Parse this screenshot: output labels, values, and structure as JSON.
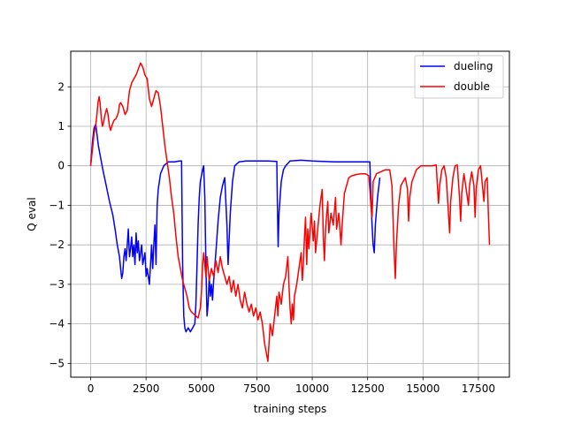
{
  "chart_data": {
    "type": "line",
    "title": "",
    "xlabel": "training steps",
    "ylabel": "Q eval",
    "xlim": [
      -900,
      18900
    ],
    "ylim": [
      -5.35,
      2.9
    ],
    "xticks": [
      0,
      2500,
      5000,
      7500,
      10000,
      12500,
      15000,
      17500
    ],
    "yticks": [
      -5,
      -4,
      -3,
      -2,
      -1,
      0,
      1,
      2
    ],
    "grid": true,
    "legend": "top-right",
    "series": [
      {
        "name": "dueling",
        "color": "#0000ff",
        "points": [
          [
            0,
            0.0
          ],
          [
            80,
            0.6
          ],
          [
            150,
            0.95
          ],
          [
            230,
            1.05
          ],
          [
            280,
            0.8
          ],
          [
            350,
            0.5
          ],
          [
            450,
            0.2
          ],
          [
            550,
            -0.1
          ],
          [
            700,
            -0.5
          ],
          [
            850,
            -0.9
          ],
          [
            1000,
            -1.25
          ],
          [
            1100,
            -1.6
          ],
          [
            1200,
            -2.0
          ],
          [
            1300,
            -2.3
          ],
          [
            1350,
            -2.6
          ],
          [
            1400,
            -2.85
          ],
          [
            1450,
            -2.7
          ],
          [
            1500,
            -2.3
          ],
          [
            1550,
            -2.1
          ],
          [
            1600,
            -2.4
          ],
          [
            1650,
            -2.0
          ],
          [
            1700,
            -1.6
          ],
          [
            1750,
            -2.3
          ],
          [
            1800,
            -2.1
          ],
          [
            1850,
            -1.8
          ],
          [
            1900,
            -2.3
          ],
          [
            1950,
            -2.0
          ],
          [
            2000,
            -2.5
          ],
          [
            2050,
            -1.7
          ],
          [
            2100,
            -2.2
          ],
          [
            2150,
            -1.9
          ],
          [
            2200,
            -2.4
          ],
          [
            2300,
            -2.0
          ],
          [
            2350,
            -2.5
          ],
          [
            2450,
            -2.2
          ],
          [
            2500,
            -2.8
          ],
          [
            2550,
            -2.6
          ],
          [
            2650,
            -3.0
          ],
          [
            2700,
            -2.5
          ],
          [
            2750,
            -2.0
          ],
          [
            2800,
            -2.6
          ],
          [
            2850,
            -2.0
          ],
          [
            2900,
            -1.5
          ],
          [
            2950,
            -2.5
          ],
          [
            3000,
            -1.0
          ],
          [
            3050,
            -0.6
          ],
          [
            3150,
            -0.2
          ],
          [
            3300,
            0.0
          ],
          [
            3500,
            0.1
          ],
          [
            3800,
            0.1
          ],
          [
            4000,
            0.12
          ],
          [
            4100,
            0.12
          ],
          [
            4120,
            -1.0
          ],
          [
            4150,
            -2.5
          ],
          [
            4200,
            -3.8
          ],
          [
            4250,
            -4.1
          ],
          [
            4300,
            -4.2
          ],
          [
            4400,
            -4.1
          ],
          [
            4500,
            -4.2
          ],
          [
            4600,
            -4.1
          ],
          [
            4700,
            -4.0
          ],
          [
            4750,
            -3.5
          ],
          [
            4800,
            -2.5
          ],
          [
            4850,
            -1.5
          ],
          [
            4900,
            -0.8
          ],
          [
            4950,
            -0.4
          ],
          [
            5050,
            -0.1
          ],
          [
            5100,
            0.0
          ],
          [
            5150,
            -0.8
          ],
          [
            5200,
            -2.5
          ],
          [
            5250,
            -3.8
          ],
          [
            5300,
            -3.5
          ],
          [
            5350,
            -2.8
          ],
          [
            5400,
            -3.3
          ],
          [
            5450,
            -3.0
          ],
          [
            5500,
            -3.4
          ],
          [
            5550,
            -2.9
          ],
          [
            5650,
            -2.2
          ],
          [
            5750,
            -1.4
          ],
          [
            5850,
            -0.8
          ],
          [
            5950,
            -0.5
          ],
          [
            6050,
            -0.3
          ],
          [
            6150,
            -1.5
          ],
          [
            6200,
            -2.5
          ],
          [
            6300,
            -1.2
          ],
          [
            6400,
            -0.4
          ],
          [
            6500,
            0.0
          ],
          [
            6700,
            0.1
          ],
          [
            7000,
            0.12
          ],
          [
            7500,
            0.12
          ],
          [
            8000,
            0.12
          ],
          [
            8400,
            0.11
          ],
          [
            8430,
            -1.0
          ],
          [
            8460,
            -2.05
          ],
          [
            8500,
            -1.2
          ],
          [
            8600,
            -0.4
          ],
          [
            8700,
            -0.1
          ],
          [
            8800,
            0.0
          ],
          [
            9000,
            0.12
          ],
          [
            9500,
            0.14
          ],
          [
            10000,
            0.12
          ],
          [
            11000,
            0.1
          ],
          [
            12000,
            0.1
          ],
          [
            12600,
            0.1
          ],
          [
            12650,
            -0.8
          ],
          [
            12700,
            -1.5
          ],
          [
            12750,
            -2.0
          ],
          [
            12800,
            -2.2
          ],
          [
            12850,
            -1.5
          ],
          [
            12950,
            -0.8
          ],
          [
            13050,
            -0.3
          ]
        ]
      },
      {
        "name": "double",
        "color": "#ff0000",
        "points": [
          [
            0,
            0.0
          ],
          [
            80,
            0.4
          ],
          [
            150,
            0.8
          ],
          [
            220,
            1.0
          ],
          [
            280,
            1.3
          ],
          [
            330,
            1.6
          ],
          [
            380,
            1.75
          ],
          [
            420,
            1.6
          ],
          [
            480,
            1.2
          ],
          [
            530,
            1.0
          ],
          [
            580,
            1.1
          ],
          [
            650,
            1.3
          ],
          [
            720,
            1.45
          ],
          [
            780,
            1.3
          ],
          [
            850,
            1.0
          ],
          [
            900,
            0.9
          ],
          [
            950,
            1.0
          ],
          [
            1050,
            1.15
          ],
          [
            1150,
            1.2
          ],
          [
            1250,
            1.35
          ],
          [
            1300,
            1.55
          ],
          [
            1350,
            1.6
          ],
          [
            1450,
            1.5
          ],
          [
            1550,
            1.3
          ],
          [
            1650,
            1.4
          ],
          [
            1750,
            1.9
          ],
          [
            1850,
            2.1
          ],
          [
            1950,
            2.2
          ],
          [
            2050,
            2.3
          ],
          [
            2150,
            2.45
          ],
          [
            2250,
            2.6
          ],
          [
            2350,
            2.5
          ],
          [
            2450,
            2.3
          ],
          [
            2550,
            2.2
          ],
          [
            2650,
            1.7
          ],
          [
            2750,
            1.5
          ],
          [
            2850,
            1.7
          ],
          [
            2950,
            1.9
          ],
          [
            3050,
            1.85
          ],
          [
            3150,
            1.5
          ],
          [
            3250,
            1.0
          ],
          [
            3350,
            0.5
          ],
          [
            3450,
            0.1
          ],
          [
            3550,
            -0.3
          ],
          [
            3650,
            -0.8
          ],
          [
            3750,
            -1.2
          ],
          [
            3850,
            -1.8
          ],
          [
            3950,
            -2.3
          ],
          [
            4050,
            -2.6
          ],
          [
            4150,
            -2.9
          ],
          [
            4250,
            -3.1
          ],
          [
            4350,
            -3.3
          ],
          [
            4450,
            -3.6
          ],
          [
            4550,
            -3.7
          ],
          [
            4650,
            -3.75
          ],
          [
            4750,
            -3.8
          ],
          [
            4850,
            -3.85
          ],
          [
            4950,
            -3.6
          ],
          [
            5000,
            -3.2
          ],
          [
            5050,
            -2.5
          ],
          [
            5100,
            -2.2
          ],
          [
            5150,
            -2.5
          ],
          [
            5200,
            -2.8
          ],
          [
            5250,
            -2.3
          ],
          [
            5300,
            -2.6
          ],
          [
            5350,
            -2.9
          ],
          [
            5450,
            -2.6
          ],
          [
            5550,
            -2.8
          ],
          [
            5650,
            -2.4
          ],
          [
            5750,
            -2.7
          ],
          [
            5850,
            -2.3
          ],
          [
            5950,
            -2.6
          ],
          [
            6050,
            -2.8
          ],
          [
            6150,
            -3.0
          ],
          [
            6250,
            -2.8
          ],
          [
            6350,
            -3.2
          ],
          [
            6450,
            -2.9
          ],
          [
            6550,
            -3.3
          ],
          [
            6650,
            -3.0
          ],
          [
            6750,
            -3.4
          ],
          [
            6850,
            -3.6
          ],
          [
            6950,
            -3.2
          ],
          [
            7050,
            -3.5
          ],
          [
            7150,
            -3.7
          ],
          [
            7250,
            -3.5
          ],
          [
            7350,
            -3.8
          ],
          [
            7450,
            -3.6
          ],
          [
            7550,
            -3.9
          ],
          [
            7650,
            -3.7
          ],
          [
            7750,
            -4.0
          ],
          [
            7850,
            -4.5
          ],
          [
            7950,
            -4.8
          ],
          [
            8000,
            -4.95
          ],
          [
            8050,
            -4.5
          ],
          [
            8100,
            -4.0
          ],
          [
            8200,
            -4.3
          ],
          [
            8300,
            -3.8
          ],
          [
            8400,
            -3.3
          ],
          [
            8450,
            -3.8
          ],
          [
            8500,
            -3.2
          ],
          [
            8600,
            -3.5
          ],
          [
            8700,
            -3.0
          ],
          [
            8800,
            -2.8
          ],
          [
            8900,
            -2.3
          ],
          [
            8950,
            -3.0
          ],
          [
            9000,
            -3.6
          ],
          [
            9050,
            -4.0
          ],
          [
            9100,
            -3.5
          ],
          [
            9150,
            -3.9
          ],
          [
            9200,
            -3.3
          ],
          [
            9300,
            -3.0
          ],
          [
            9400,
            -2.6
          ],
          [
            9500,
            -2.2
          ],
          [
            9550,
            -2.9
          ],
          [
            9600,
            -2.5
          ],
          [
            9650,
            -1.8
          ],
          [
            9700,
            -1.3
          ],
          [
            9750,
            -2.5
          ],
          [
            9800,
            -1.6
          ],
          [
            9850,
            -2.1
          ],
          [
            9950,
            -1.2
          ],
          [
            10050,
            -1.9
          ],
          [
            10100,
            -1.4
          ],
          [
            10150,
            -2.2
          ],
          [
            10250,
            -1.6
          ],
          [
            10350,
            -1.0
          ],
          [
            10450,
            -0.6
          ],
          [
            10500,
            -1.8
          ],
          [
            10550,
            -2.4
          ],
          [
            10600,
            -1.6
          ],
          [
            10700,
            -0.9
          ],
          [
            10750,
            -1.7
          ],
          [
            10850,
            -1.2
          ],
          [
            10950,
            -1.5
          ],
          [
            11050,
            -0.8
          ],
          [
            11100,
            -1.6
          ],
          [
            11200,
            -1.2
          ],
          [
            11300,
            -2.0
          ],
          [
            11350,
            -1.5
          ],
          [
            11450,
            -0.7
          ],
          [
            11550,
            -0.5
          ],
          [
            11650,
            -0.3
          ],
          [
            11800,
            -0.25
          ],
          [
            12000,
            -0.22
          ],
          [
            12200,
            -0.2
          ],
          [
            12400,
            -0.2
          ],
          [
            12550,
            -0.25
          ],
          [
            12600,
            -0.6
          ],
          [
            12650,
            -1.0
          ],
          [
            12700,
            -1.3
          ],
          [
            12750,
            -0.4
          ],
          [
            12900,
            -0.2
          ],
          [
            13100,
            -0.15
          ],
          [
            13300,
            -0.1
          ],
          [
            13500,
            -0.1
          ],
          [
            13600,
            -0.5
          ],
          [
            13700,
            -2.2
          ],
          [
            13750,
            -2.85
          ],
          [
            13800,
            -2.0
          ],
          [
            13900,
            -1.0
          ],
          [
            14000,
            -0.5
          ],
          [
            14200,
            -0.3
          ],
          [
            14300,
            -0.6
          ],
          [
            14350,
            -1.4
          ],
          [
            14400,
            -0.8
          ],
          [
            14500,
            -0.4
          ],
          [
            14700,
            -0.1
          ],
          [
            14900,
            0.0
          ],
          [
            15100,
            0.0
          ],
          [
            15400,
            0.0
          ],
          [
            15600,
            0.02
          ],
          [
            15650,
            -0.5
          ],
          [
            15700,
            -0.95
          ],
          [
            15750,
            -0.5
          ],
          [
            15850,
            -0.1
          ],
          [
            15950,
            0.0
          ],
          [
            16050,
            -0.3
          ],
          [
            16150,
            -1.2
          ],
          [
            16200,
            -1.7
          ],
          [
            16250,
            -0.9
          ],
          [
            16350,
            -0.3
          ],
          [
            16450,
            0.0
          ],
          [
            16550,
            0.02
          ],
          [
            16650,
            -0.8
          ],
          [
            16700,
            -1.4
          ],
          [
            16750,
            -0.7
          ],
          [
            16850,
            -0.2
          ],
          [
            16950,
            -0.6
          ],
          [
            17050,
            -1.0
          ],
          [
            17100,
            -0.5
          ],
          [
            17200,
            -0.15
          ],
          [
            17300,
            -0.5
          ],
          [
            17350,
            -1.3
          ],
          [
            17400,
            -0.6
          ],
          [
            17500,
            -0.1
          ],
          [
            17600,
            0.0
          ],
          [
            17700,
            -0.6
          ],
          [
            17750,
            -0.9
          ],
          [
            17800,
            -0.4
          ],
          [
            17900,
            -0.3
          ],
          [
            17950,
            -1.2
          ],
          [
            18000,
            -2.0
          ]
        ]
      }
    ]
  }
}
